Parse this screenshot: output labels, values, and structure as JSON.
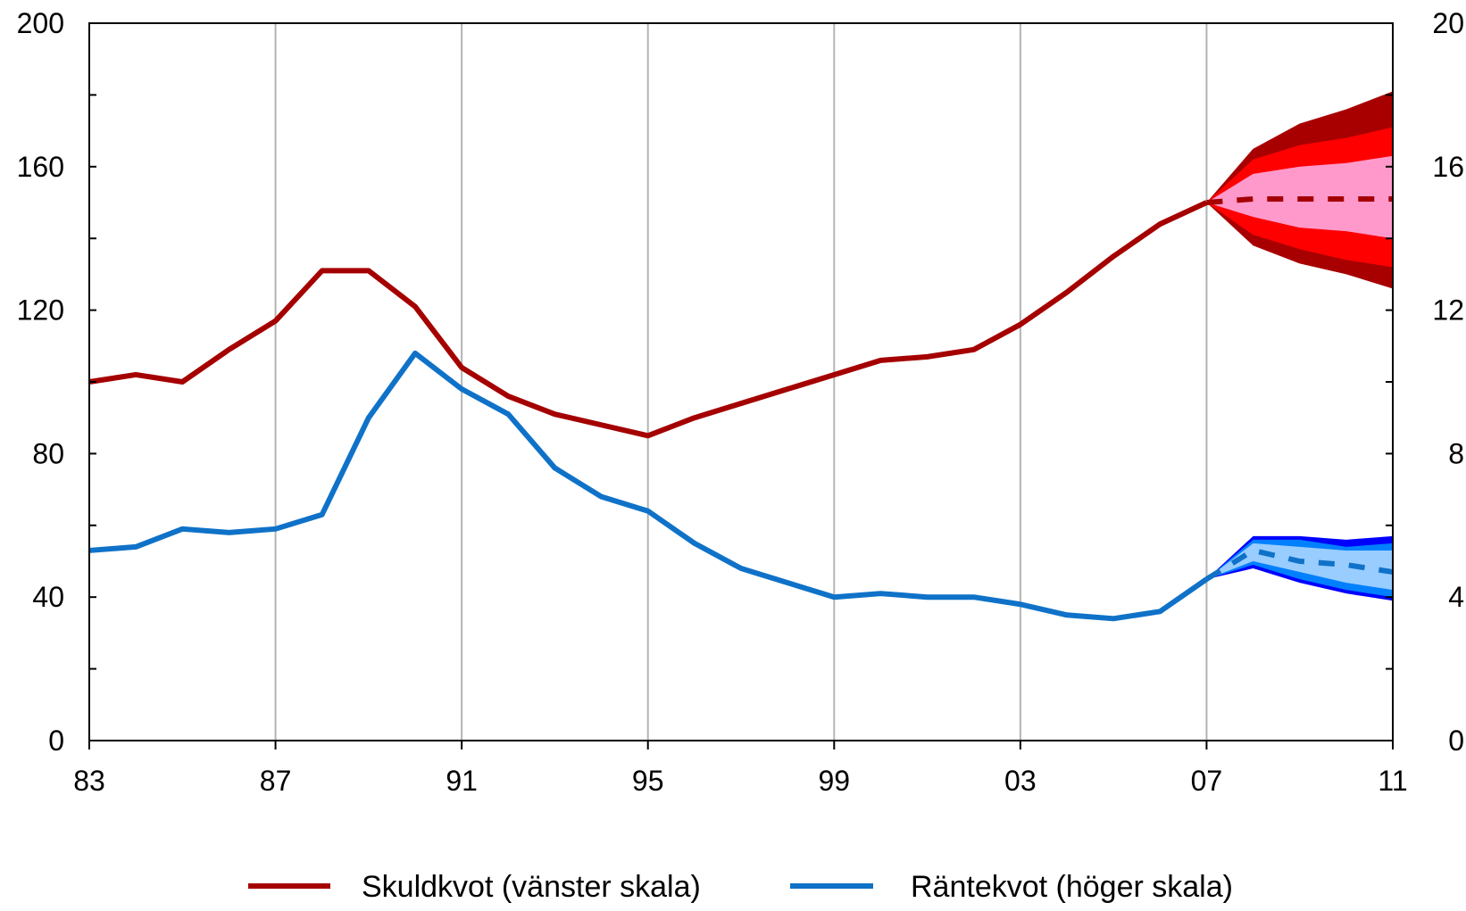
{
  "chart_data": {
    "type": "line",
    "title": "",
    "x_ticks": [
      "83",
      "87",
      "91",
      "95",
      "99",
      "03",
      "07",
      "11"
    ],
    "x_range": [
      1983,
      2011
    ],
    "y_left": {
      "range": [
        0,
        200
      ],
      "ticks": [
        "0",
        "40",
        "80",
        "120",
        "160",
        "200"
      ],
      "minor_step": 20
    },
    "y_right": {
      "range": [
        0,
        20
      ],
      "ticks": [
        "0",
        "4",
        "8",
        "12",
        "16",
        "20"
      ],
      "minor_step": 2
    },
    "grid": "vertical",
    "legend_position": "bottom",
    "colors": {
      "skuld": "#a50000",
      "skuld_band_outer": "#a80000",
      "skuld_band_mid": "#ff0000",
      "skuld_band_inner": "#ff99cc",
      "ranta": "#0f72c8",
      "ranta_band_outer": "#0000ff",
      "ranta_band_mid": "#0080ff",
      "ranta_band_inner": "#99ccff"
    },
    "series": [
      {
        "name": "Skuldkvot (vänster skala)",
        "axis": "left",
        "x": [
          1983,
          1984,
          1985,
          1986,
          1987,
          1988,
          1989,
          1990,
          1991,
          1992,
          1993,
          1994,
          1995,
          1996,
          1997,
          1998,
          1999,
          2000,
          2001,
          2002,
          2003,
          2004,
          2005,
          2006,
          2007
        ],
        "values": [
          100,
          102,
          100,
          109,
          117,
          131,
          131,
          121,
          104,
          96,
          91,
          88,
          85,
          90,
          94,
          98,
          102,
          106,
          107,
          109,
          116,
          125,
          135,
          144,
          150
        ],
        "forecast": {
          "x": [
            2007,
            2008,
            2009,
            2010,
            2011
          ],
          "median": [
            150,
            151,
            151,
            151,
            151
          ],
          "bands": [
            {
              "level": "outer",
              "lower": [
                150,
                138,
                133,
                130,
                126
              ],
              "upper": [
                150,
                165,
                172,
                176,
                181
              ]
            },
            {
              "level": "mid",
              "lower": [
                150,
                141,
                137,
                134,
                132
              ],
              "upper": [
                150,
                162,
                166,
                168,
                171
              ]
            },
            {
              "level": "inner",
              "lower": [
                150,
                146,
                143,
                142,
                140
              ],
              "upper": [
                150,
                158,
                160,
                161,
                163
              ]
            }
          ]
        }
      },
      {
        "name": "Räntekvot (höger skala)",
        "axis": "right",
        "x": [
          1983,
          1984,
          1985,
          1986,
          1987,
          1988,
          1989,
          1990,
          1991,
          1992,
          1993,
          1994,
          1995,
          1996,
          1997,
          1998,
          1999,
          2000,
          2001,
          2002,
          2003,
          2004,
          2005,
          2006,
          2007
        ],
        "values": [
          5.3,
          5.4,
          5.9,
          5.8,
          5.9,
          6.3,
          9.0,
          10.8,
          9.8,
          9.1,
          7.6,
          6.8,
          6.4,
          5.5,
          4.8,
          4.4,
          4.0,
          4.1,
          4.0,
          4.0,
          3.8,
          3.5,
          3.4,
          3.6,
          4.5
        ],
        "forecast": {
          "x": [
            2007,
            2008,
            2009,
            2010,
            2011
          ],
          "median": [
            4.5,
            5.3,
            5.0,
            4.9,
            4.7
          ],
          "bands": [
            {
              "level": "outer",
              "lower": [
                4.5,
                4.8,
                4.4,
                4.1,
                3.9
              ],
              "upper": [
                4.5,
                5.7,
                5.7,
                5.6,
                5.7
              ]
            },
            {
              "level": "mid",
              "lower": [
                4.5,
                4.9,
                4.5,
                4.2,
                4.0
              ],
              "upper": [
                4.5,
                5.6,
                5.6,
                5.4,
                5.5
              ]
            },
            {
              "level": "inner",
              "lower": [
                4.5,
                5.0,
                4.7,
                4.4,
                4.2
              ],
              "upper": [
                4.5,
                5.5,
                5.4,
                5.3,
                5.3
              ]
            }
          ]
        }
      }
    ]
  }
}
